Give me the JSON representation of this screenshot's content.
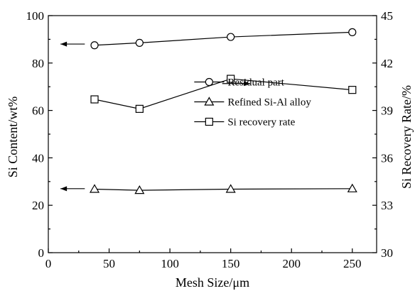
{
  "chart_data": {
    "type": "line",
    "xlabel": "Mesh Size/μm",
    "ylabel_left": "Si Content/wt%",
    "ylabel_right": "Si Recovery Rate/%",
    "xlim": [
      0,
      270
    ],
    "ylim_left": [
      0,
      100
    ],
    "ylim_right": [
      30,
      45
    ],
    "x_ticks": [
      0,
      50,
      100,
      150,
      200,
      250
    ],
    "y_ticks_left": [
      0,
      20,
      40,
      60,
      80,
      100
    ],
    "y_ticks_right": [
      30,
      33,
      36,
      39,
      42,
      45
    ],
    "grid": false,
    "legend_position": "center-right",
    "series": [
      {
        "name": "Residual part",
        "axis": "left",
        "marker": "circle",
        "x": [
          38,
          75,
          150,
          250
        ],
        "y": [
          87.5,
          88.5,
          91,
          93
        ]
      },
      {
        "name": "Refined Si-Al alloy",
        "axis": "left",
        "marker": "triangle",
        "x": [
          38,
          75,
          150,
          250
        ],
        "y": [
          26.8,
          26.3,
          26.8,
          27
        ]
      },
      {
        "name": "Si recovery rate",
        "axis": "right",
        "marker": "square",
        "x": [
          38,
          75,
          150,
          250
        ],
        "y": [
          39.7,
          39.1,
          41,
          40.3
        ]
      }
    ],
    "annotations": [
      {
        "type": "arrow",
        "direction": "left",
        "points_to_axis": "left",
        "series": "Residual part"
      },
      {
        "type": "arrow",
        "direction": "right",
        "points_to_axis": "right",
        "series": "Si recovery rate"
      },
      {
        "type": "arrow",
        "direction": "left",
        "points_to_axis": "left",
        "series": "Refined Si-Al alloy"
      }
    ]
  }
}
